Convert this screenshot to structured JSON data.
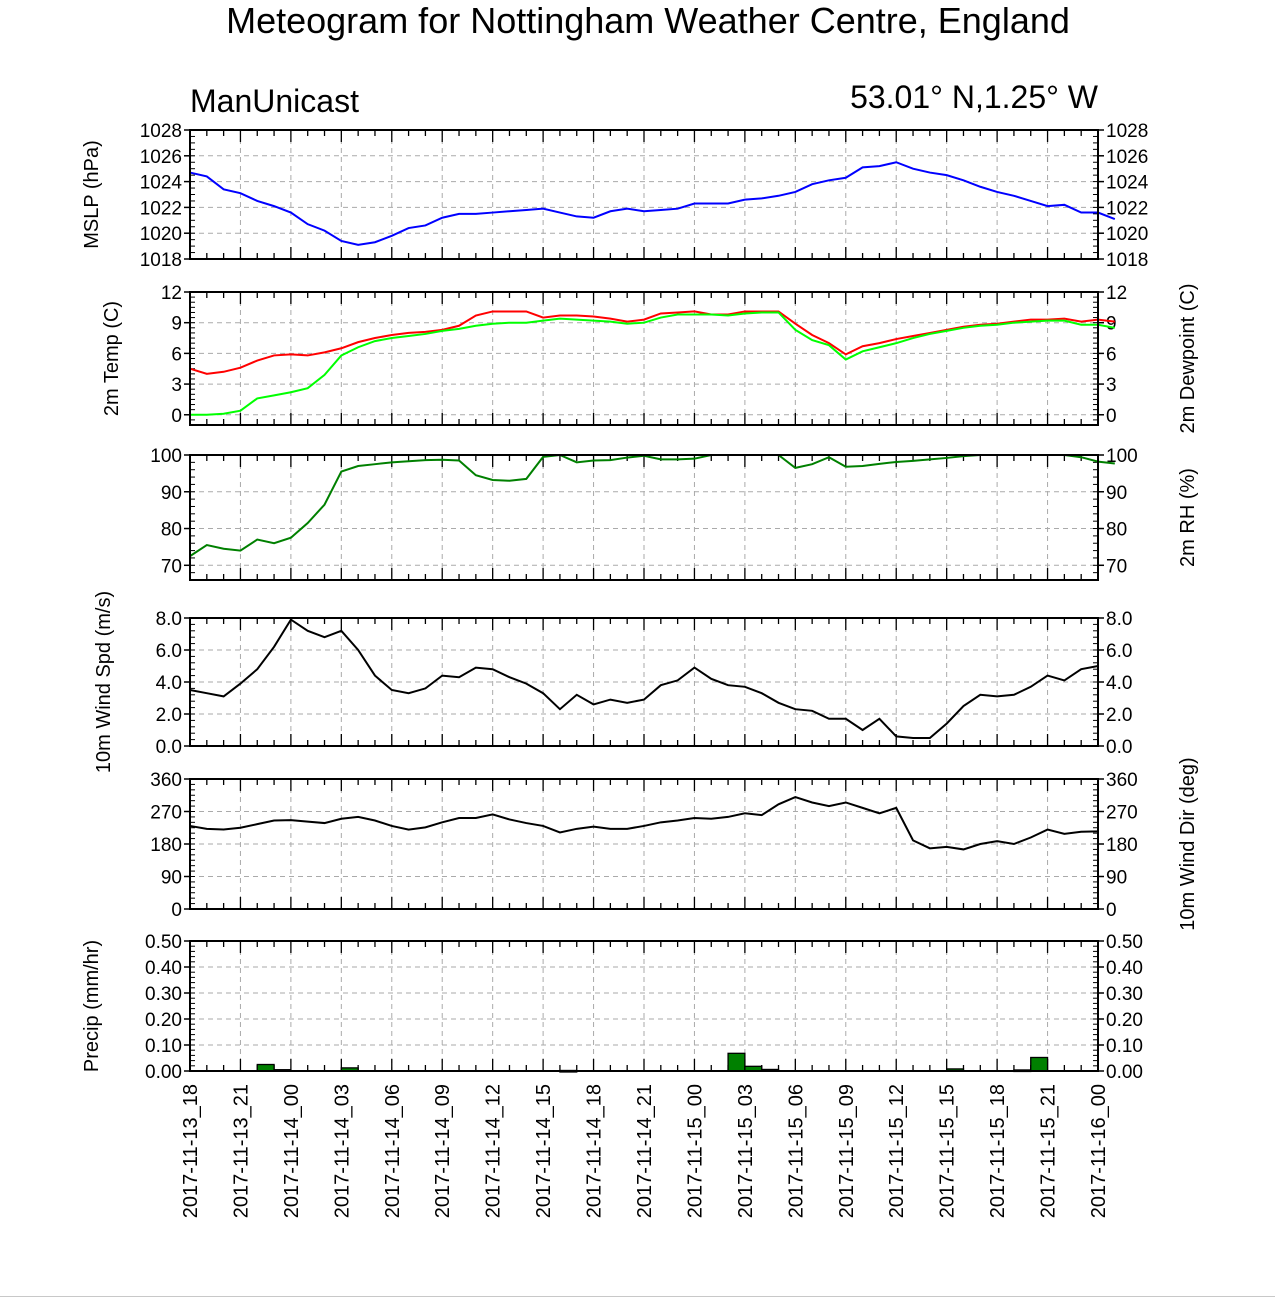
{
  "title": "Meteogram for Nottingham Weather Centre, England",
  "model": "ManUnicast",
  "location": "53.01° N,1.25° W",
  "colors": {
    "mslp": "#0000ff",
    "temp": "#ff0000",
    "dewpoint": "#00ff00",
    "rh": "#008000",
    "wind": "#000000",
    "precip": "#008000",
    "grid": "#aaaaaa"
  },
  "chart_data": [
    {
      "type": "line",
      "panel": "mslp",
      "ylabel": "MSLP (hPa)",
      "ylim": [
        1018,
        1028
      ],
      "yticks": [
        1018,
        1020,
        1022,
        1024,
        1026,
        1028
      ],
      "grid": true,
      "series": [
        {
          "values": [
            1024.7,
            1024.4,
            1023.4,
            1023.1,
            1022.5,
            1022.1,
            1021.6,
            1020.7,
            1020.2,
            1019.4,
            1019.1,
            1019.3,
            1019.8,
            1020.4,
            1020.6,
            1021.2,
            1021.5,
            1021.5,
            1021.6,
            1021.7,
            1021.8,
            1021.9,
            1021.6,
            1021.3,
            1021.2,
            1021.7,
            1021.9,
            1021.7,
            1021.8,
            1021.9,
            1022.3,
            1022.3,
            1022.3,
            1022.6,
            1022.7,
            1022.9,
            1023.2,
            1023.8,
            1024.1,
            1024.3,
            1025.1,
            1025.2,
            1025.5,
            1025.0,
            1024.7,
            1024.5,
            1024.1,
            1023.6,
            1023.2,
            1022.9,
            1022.5,
            1022.1,
            1022.2,
            1021.6,
            1021.6,
            1021.1
          ]
        }
      ]
    },
    {
      "type": "line",
      "panel": "temp_dewpoint",
      "ylabel": "2m Temp (C)",
      "ylabel_right": "2m Dewpoint (C)",
      "ylim": [
        -1,
        12
      ],
      "yticks": [
        0,
        3,
        6,
        9,
        12
      ],
      "grid": true,
      "series": [
        {
          "values": [
            4.5,
            4.0,
            4.2,
            4.6,
            5.3,
            5.8,
            5.9,
            5.8,
            6.1,
            6.5,
            7.1,
            7.5,
            7.8,
            8.0,
            8.1,
            8.3,
            8.7,
            9.7,
            10.1,
            10.1,
            10.1,
            9.5,
            9.7,
            9.7,
            9.6,
            9.4,
            9.1,
            9.3,
            9.9,
            10.0,
            10.1,
            9.8,
            9.8,
            10.1,
            10.1,
            10.1,
            8.9,
            7.8,
            7.0,
            5.9,
            6.7,
            7.0,
            7.4,
            7.7,
            8.0,
            8.3,
            8.6,
            8.8,
            8.9,
            9.1,
            9.3,
            9.3,
            9.4,
            9.1,
            9.3,
            9.1
          ]
        },
        {
          "values": [
            0.0,
            0.0,
            0.1,
            0.4,
            1.6,
            1.9,
            2.2,
            2.6,
            3.9,
            5.8,
            6.6,
            7.2,
            7.5,
            7.7,
            7.9,
            8.2,
            8.4,
            8.7,
            8.9,
            9.0,
            9.0,
            9.2,
            9.4,
            9.3,
            9.2,
            9.1,
            8.9,
            9.0,
            9.5,
            9.8,
            9.8,
            9.8,
            9.7,
            9.9,
            10.0,
            10.0,
            8.3,
            7.3,
            6.8,
            5.4,
            6.2,
            6.6,
            7.0,
            7.5,
            7.9,
            8.2,
            8.5,
            8.7,
            8.8,
            9.0,
            9.1,
            9.2,
            9.2,
            8.8,
            8.8,
            8.5
          ]
        }
      ]
    },
    {
      "type": "line",
      "panel": "rh",
      "ylabel_right": "2m RH (%)",
      "ylim": [
        66,
        100
      ],
      "yticks": [
        70,
        80,
        90,
        100
      ],
      "grid": true,
      "series": [
        {
          "values": [
            72.5,
            75.5,
            74.5,
            74.0,
            77.0,
            76.0,
            77.5,
            81.5,
            86.5,
            95.5,
            97.0,
            97.5,
            98.0,
            98.3,
            98.6,
            98.7,
            98.5,
            94.5,
            93.2,
            93.0,
            93.5,
            99.5,
            100,
            98.0,
            98.5,
            98.6,
            99.3,
            99.8,
            98.8,
            98.8,
            99.0,
            100,
            100,
            100,
            100,
            100,
            96.5,
            97.5,
            99.4,
            96.8,
            97.0,
            97.6,
            98.1,
            98.4,
            98.8,
            99.2,
            99.7,
            100,
            100,
            100,
            100,
            100,
            100,
            99.4,
            98.2,
            97.7
          ]
        }
      ]
    },
    {
      "type": "line",
      "panel": "wind_speed",
      "ylabel": "10m Wind Spd (m/s)",
      "ylim": [
        0,
        8
      ],
      "yticks": [
        "0.0",
        "2.0",
        "4.0",
        "6.0",
        "8.0"
      ],
      "grid": true,
      "series": [
        {
          "values": [
            3.5,
            3.3,
            3.1,
            3.9,
            4.8,
            6.2,
            7.9,
            7.2,
            6.8,
            7.2,
            6.0,
            4.4,
            3.5,
            3.3,
            3.6,
            4.4,
            4.3,
            4.9,
            4.8,
            4.3,
            3.9,
            3.3,
            2.3,
            3.2,
            2.6,
            2.9,
            2.7,
            2.9,
            3.8,
            4.1,
            4.9,
            4.2,
            3.8,
            3.7,
            3.3,
            2.7,
            2.3,
            2.2,
            1.7,
            1.7,
            1.0,
            1.7,
            0.6,
            0.5,
            0.5,
            1.4,
            2.5,
            3.2,
            3.1,
            3.2,
            3.7,
            4.4,
            4.1,
            4.8,
            5.0
          ]
        }
      ]
    },
    {
      "type": "line",
      "panel": "wind_dir",
      "ylabel_right": "10m Wind Dir (deg)",
      "ylim": [
        0,
        360
      ],
      "yticks": [
        0,
        90,
        180,
        270,
        360
      ],
      "grid": true,
      "series": [
        {
          "values": [
            230,
            222,
            220,
            225,
            235,
            245,
            246,
            242,
            238,
            250,
            255,
            245,
            230,
            220,
            226,
            240,
            252,
            252,
            262,
            248,
            238,
            230,
            212,
            222,
            228,
            222,
            222,
            230,
            240,
            245,
            252,
            250,
            255,
            265,
            260,
            290,
            310,
            295,
            285,
            295,
            280,
            265,
            280,
            190,
            168,
            172,
            165,
            180,
            188,
            180,
            198,
            220,
            208,
            214,
            215
          ]
        }
      ]
    },
    {
      "type": "bar",
      "panel": "precip",
      "ylabel": "Precip (mm/hr)",
      "ylim": [
        0,
        0.5
      ],
      "yticks": [
        "0.00",
        "0.10",
        "0.20",
        "0.30",
        "0.40",
        "0.50"
      ],
      "grid": true,
      "hours": [
        4,
        5,
        9,
        22,
        32,
        33,
        34,
        45,
        49,
        50
      ],
      "values": [
        0.025,
        0.005,
        0.012,
        0.002,
        0.068,
        0.018,
        0.006,
        0.008,
        0.004,
        0.052
      ],
      "x_tick_labels": [
        "2017-11-13_18",
        "2017-11-13_21",
        "2017-11-14_00",
        "2017-11-14_03",
        "2017-11-14_06",
        "2017-11-14_09",
        "2017-11-14_12",
        "2017-11-14_15",
        "2017-11-14_18",
        "2017-11-14_21",
        "2017-11-15_00",
        "2017-11-15_03",
        "2017-11-15_06",
        "2017-11-15_09",
        "2017-11-15_12",
        "2017-11-15_15",
        "2017-11-15_18",
        "2017-11-15_21",
        "2017-11-16_00"
      ]
    }
  ]
}
